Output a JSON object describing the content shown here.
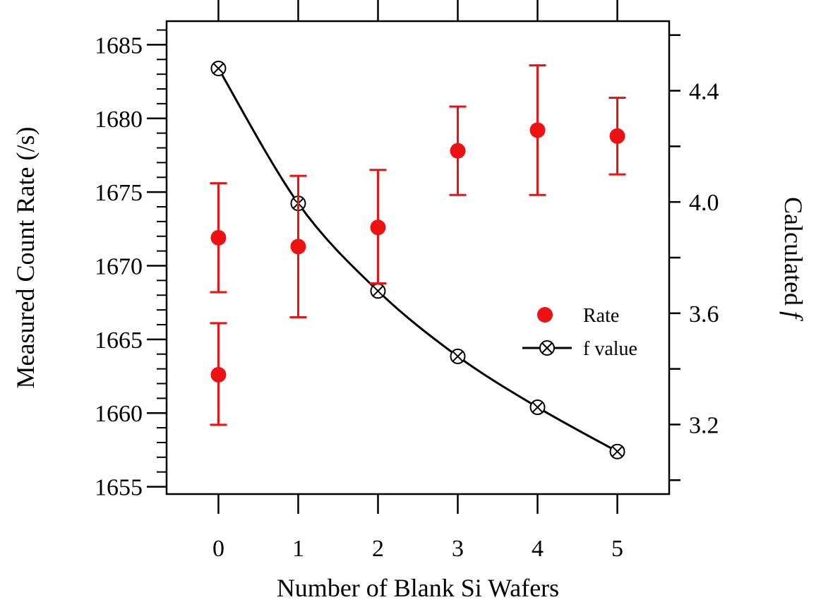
{
  "chart_data": {
    "type": "scatter",
    "xlabel": "Number of Blank Si Wafers",
    "ylabel": "Measured Count Rate (/s)",
    "y2label_prefix": "Calculated",
    "y2label_italic": "f",
    "xlim": [
      -0.65,
      5.65
    ],
    "ylim": [
      1654.5,
      1686.6
    ],
    "y2lim": [
      2.95,
      4.65
    ],
    "x_ticks": [
      0,
      1,
      2,
      3,
      4,
      5
    ],
    "y_ticks": [
      1655,
      1660,
      1665,
      1670,
      1675,
      1680,
      1685
    ],
    "y2_ticks": [
      3.2,
      3.6,
      4.0,
      4.4
    ],
    "y2_minor_ticks": [
      3.0,
      3.4,
      3.8,
      4.2,
      4.6
    ],
    "colors": {
      "rate": "#ee1111",
      "f_value": "#000000",
      "axes": "#000000"
    },
    "legend_position": "right-middle",
    "series": [
      {
        "name": "Rate",
        "axis": "left",
        "style": "points-with-errorbars",
        "points": [
          {
            "x": 0,
            "y": 1662.6,
            "lo": 1659.2,
            "hi": 1666.1
          },
          {
            "x": 0,
            "y": 1671.9,
            "lo": 1668.2,
            "hi": 1675.6
          },
          {
            "x": 1,
            "y": 1671.3,
            "lo": 1666.5,
            "hi": 1676.1
          },
          {
            "x": 2,
            "y": 1672.6,
            "lo": 1668.8,
            "hi": 1676.5
          },
          {
            "x": 3,
            "y": 1677.8,
            "lo": 1674.8,
            "hi": 1680.8
          },
          {
            "x": 4,
            "y": 1679.2,
            "lo": 1674.8,
            "hi": 1683.6
          },
          {
            "x": 5,
            "y": 1678.8,
            "lo": 1676.2,
            "hi": 1681.4
          }
        ]
      },
      {
        "name": "f value",
        "axis": "right",
        "style": "line-with-crossed-circles",
        "points": [
          {
            "x": 0,
            "y": 4.48
          },
          {
            "x": 1,
            "y": 3.995
          },
          {
            "x": 2,
            "y": 3.68
          },
          {
            "x": 3,
            "y": 3.445
          },
          {
            "x": 4,
            "y": 3.262
          },
          {
            "x": 5,
            "y": 3.103
          }
        ]
      }
    ]
  }
}
